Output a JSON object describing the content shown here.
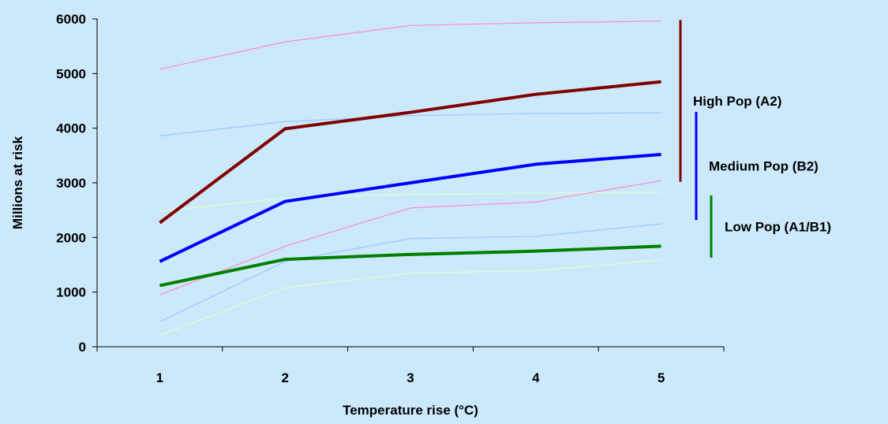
{
  "chart_data": {
    "type": "line",
    "title": "",
    "xlabel": "Temperature rise (°C)",
    "ylabel": "Millions at risk",
    "x": [
      1,
      2,
      3,
      4,
      5
    ],
    "xlim": [
      0.5,
      5.5
    ],
    "ylim": [
      0,
      6000
    ],
    "yticks": [
      0,
      1000,
      2000,
      3000,
      4000,
      5000,
      6000
    ],
    "grid": false,
    "series": [
      {
        "color": "#ff8cc6",
        "weight": "thin",
        "values": [
          5080,
          5580,
          5880,
          5930,
          5960
        ]
      },
      {
        "color": "#800000",
        "weight": "thick",
        "values": [
          2270,
          3990,
          4290,
          4620,
          4850
        ]
      },
      {
        "color": "#99c4ff",
        "weight": "thin",
        "values": [
          3860,
          4120,
          4230,
          4270,
          4280
        ]
      },
      {
        "color": "#0000ff",
        "weight": "thick",
        "values": [
          1560,
          2660,
          3000,
          3340,
          3520
        ]
      },
      {
        "color": "#e0ffcc",
        "weight": "thin",
        "values": [
          2480,
          2720,
          2790,
          2810,
          2830
        ]
      },
      {
        "color": "#ff8cc6",
        "weight": "thin",
        "values": [
          950,
          1840,
          2540,
          2650,
          3040
        ]
      },
      {
        "color": "#99c4ff",
        "weight": "thin",
        "values": [
          460,
          1560,
          1980,
          2020,
          2250
        ]
      },
      {
        "color": "#008000",
        "weight": "thick",
        "values": [
          1120,
          1600,
          1690,
          1750,
          1840
        ]
      },
      {
        "color": "#e0ffcc",
        "weight": "thin",
        "values": [
          210,
          1080,
          1350,
          1390,
          1590
        ]
      }
    ],
    "brackets": [
      {
        "label": "High Pop (A2)",
        "color": "#800000",
        "range": [
          3020,
          5980
        ]
      },
      {
        "label": "Medium Pop (B2)",
        "color": "#0000ff",
        "range": [
          2320,
          4300
        ]
      },
      {
        "label": "Low Pop (A1/B1)",
        "color": "#008000",
        "range": [
          1630,
          2770
        ]
      }
    ]
  }
}
